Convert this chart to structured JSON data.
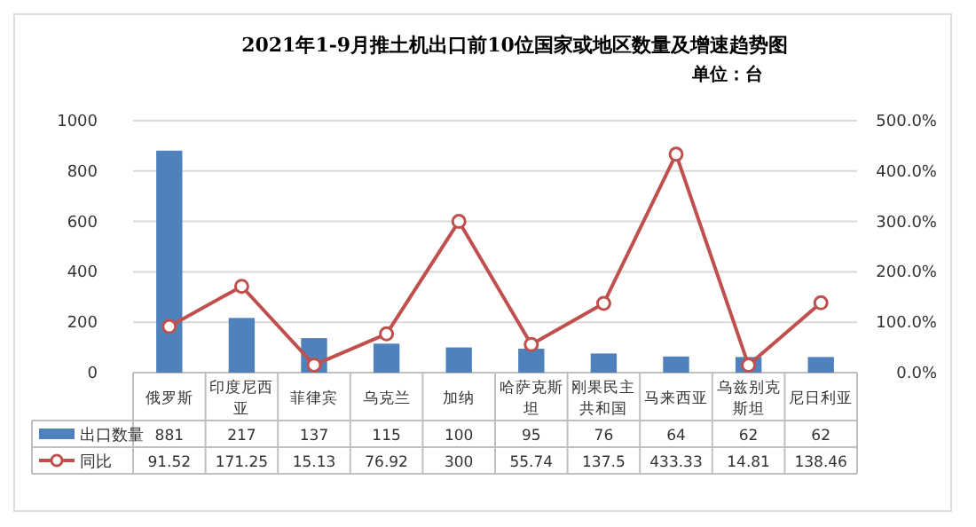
{
  "chart_data": {
    "type": "bar",
    "title": "2021年1-9月推土机出口前10位国家或地区数量及增速趋势图",
    "subtitle": "单位：台",
    "categories": [
      "俄罗斯",
      "印度尼西亚",
      "菲律宾",
      "乌克兰",
      "加纳",
      "哈萨克斯坦",
      "刚果民主共和国",
      "马来西亚",
      "乌兹别克斯坦",
      "尼日利亚"
    ],
    "series": [
      {
        "name": "出口数量",
        "color": "#4f81bd",
        "values": [
          881,
          217,
          137,
          115,
          100,
          95,
          76,
          64,
          62,
          62
        ]
      },
      {
        "name": "同比",
        "type": "line",
        "axis": "y2",
        "color": "#c0504d",
        "marker": "circle",
        "values": [
          91.52,
          171.25,
          15.13,
          76.92,
          300,
          55.74,
          137.5,
          433.33,
          14.81,
          138.46
        ]
      }
    ],
    "ylim": [
      0,
      1000
    ],
    "yticks": [
      0,
      200,
      400,
      600,
      800,
      1000
    ],
    "y2lim": [
      0,
      500
    ],
    "y2ticks": [
      {
        "value": 0,
        "label": "0.0%"
      },
      {
        "value": 100,
        "label": "100.0%"
      },
      {
        "value": 200,
        "label": "200.0%"
      },
      {
        "value": 300,
        "label": "300.0%"
      },
      {
        "value": 400,
        "label": "400.0%"
      },
      {
        "value": 500,
        "label": "500.0%"
      }
    ],
    "grid": "y",
    "legend": "bottom left",
    "data_labels": true
  }
}
